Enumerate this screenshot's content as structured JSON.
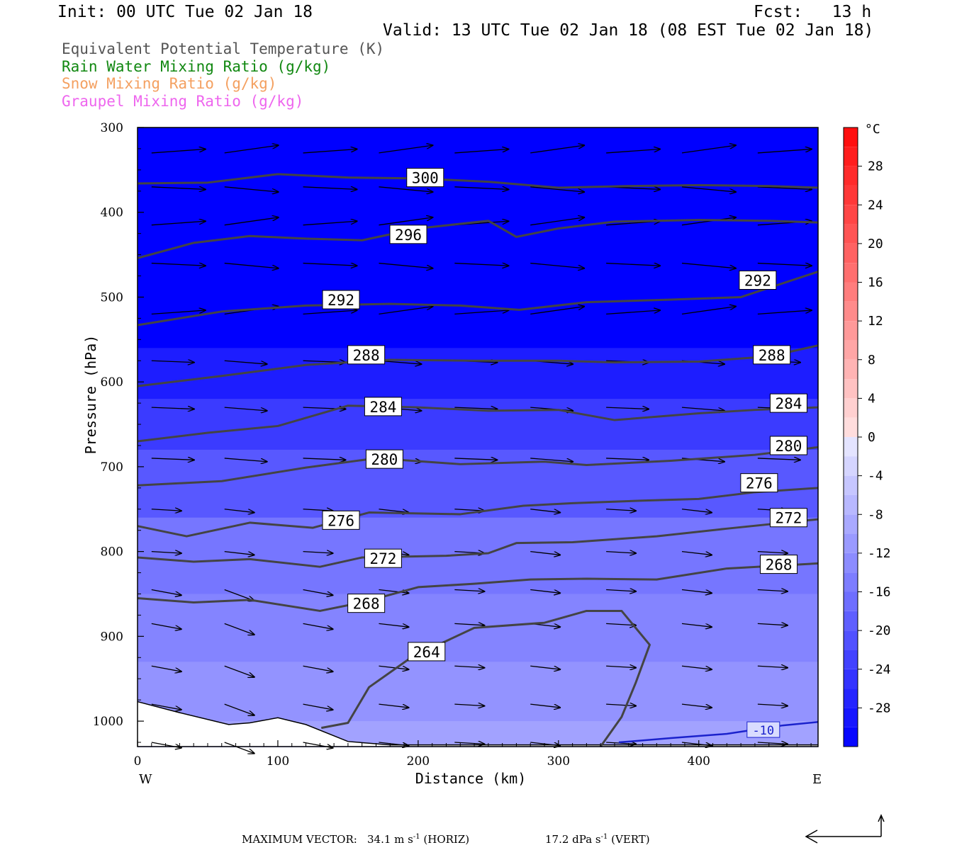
{
  "header": {
    "init": "Init: 00 UTC Tue 02 Jan 18",
    "fcst": "Fcst:   13 h",
    "valid": "Valid: 13 UTC Tue 02 Jan 18 (08 EST Tue 02 Jan 18)"
  },
  "legend": [
    {
      "text": "Equivalent Potential Temperature (K)",
      "color": "#555555"
    },
    {
      "text": "Rain Water Mixing Ratio (g/kg)",
      "color": "#118811"
    },
    {
      "text": "Snow Mixing Ratio (g/kg)",
      "color": "#f4a060"
    },
    {
      "text": "Graupel Mixing Ratio (g/kg)",
      "color": "#ee66ee"
    }
  ],
  "footer": {
    "label": "MAXIMUM VECTOR:",
    "horiz_value": "34.1 m s",
    "horiz_exp": "-1",
    "horiz_tag": "(HORIZ)",
    "vert_value": "17.2 dPa s",
    "vert_exp": "-1",
    "vert_tag": "(VERT)"
  },
  "chart_data": {
    "type": "cross-section",
    "xlabel": "Distance (km)",
    "ylabel": "Pressure (hPa)",
    "xlim": [
      0,
      485
    ],
    "ylim": [
      1030,
      300
    ],
    "x_ticks": [
      0,
      100,
      200,
      300,
      400
    ],
    "y_ticks": [
      300,
      400,
      500,
      600,
      700,
      800,
      900,
      1000
    ],
    "x_end_labels": {
      "left": "W",
      "right": "E"
    },
    "colorbar": {
      "unit": "°C",
      "range": [
        -32,
        32
      ],
      "labels": [
        28,
        24,
        20,
        16,
        12,
        8,
        4,
        0,
        -4,
        -8,
        -12,
        -16,
        -20,
        -24,
        -28
      ]
    },
    "temperature_fill_bands": [
      {
        "p": 300,
        "t": -32
      },
      {
        "p": 560,
        "t": -28
      },
      {
        "p": 620,
        "t": -24
      },
      {
        "p": 680,
        "t": -20
      },
      {
        "p": 760,
        "t": -16
      },
      {
        "p": 850,
        "t": -14
      },
      {
        "p": 930,
        "t": -12
      },
      {
        "p": 1000,
        "t": -10
      }
    ],
    "theta_e_contours": [
      {
        "label": "300",
        "label_at": [
          205,
          359
        ],
        "points": [
          [
            0,
            366
          ],
          [
            50,
            365
          ],
          [
            100,
            355
          ],
          [
            150,
            359
          ],
          [
            200,
            360
          ],
          [
            250,
            364
          ],
          [
            300,
            371
          ],
          [
            350,
            369
          ],
          [
            400,
            368
          ],
          [
            450,
            369
          ],
          [
            485,
            371
          ]
        ]
      },
      {
        "label": "296",
        "label_at": [
          193,
          426
        ],
        "points": [
          [
            0,
            454
          ],
          [
            40,
            436
          ],
          [
            80,
            428
          ],
          [
            120,
            431
          ],
          [
            160,
            433
          ],
          [
            200,
            419
          ],
          [
            250,
            410
          ],
          [
            270,
            429
          ],
          [
            300,
            419
          ],
          [
            340,
            411
          ],
          [
            400,
            409
          ],
          [
            450,
            410
          ],
          [
            485,
            412
          ]
        ]
      },
      {
        "label": "292",
        "label_at": [
          145,
          503
        ],
        "points": [
          [
            0,
            533
          ],
          [
            60,
            517
          ],
          [
            120,
            510
          ],
          [
            180,
            508
          ],
          [
            230,
            510
          ],
          [
            272,
            515
          ],
          [
            320,
            506
          ],
          [
            380,
            503
          ],
          [
            430,
            500
          ],
          [
            485,
            470
          ]
        ]
      },
      {
        "label": "292",
        "label_at": [
          442,
          480
        ],
        "points": []
      },
      {
        "label": "288",
        "label_at": [
          163,
          568
        ],
        "points": [
          [
            0,
            605
          ],
          [
            60,
            593
          ],
          [
            120,
            580
          ],
          [
            180,
            574
          ],
          [
            240,
            575
          ],
          [
            300,
            575
          ],
          [
            340,
            577
          ],
          [
            400,
            576
          ],
          [
            450,
            570
          ],
          [
            485,
            557
          ]
        ]
      },
      {
        "label": "288",
        "label_at": [
          452,
          568
        ],
        "points": []
      },
      {
        "label": "284",
        "label_at": [
          175,
          629
        ],
        "points": [
          [
            0,
            670
          ],
          [
            50,
            660
          ],
          [
            100,
            652
          ],
          [
            150,
            628
          ],
          [
            200,
            630
          ],
          [
            250,
            634
          ],
          [
            300,
            633
          ],
          [
            340,
            645
          ],
          [
            400,
            637
          ],
          [
            440,
            633
          ],
          [
            485,
            630
          ]
        ]
      },
      {
        "label": "284",
        "label_at": [
          464,
          625
        ],
        "points": []
      },
      {
        "label": "280",
        "label_at": [
          176,
          691
        ],
        "points": [
          [
            0,
            722
          ],
          [
            60,
            717
          ],
          [
            120,
            701
          ],
          [
            170,
            690
          ],
          [
            230,
            697
          ],
          [
            290,
            694
          ],
          [
            320,
            698
          ],
          [
            380,
            693
          ],
          [
            440,
            686
          ],
          [
            485,
            677
          ]
        ]
      },
      {
        "label": "280",
        "label_at": [
          464,
          675
        ],
        "points": []
      },
      {
        "label": "276",
        "label_at": [
          145,
          763
        ],
        "points": [
          [
            0,
            770
          ],
          [
            35,
            782
          ],
          [
            80,
            766
          ],
          [
            125,
            772
          ],
          [
            165,
            754
          ],
          [
            230,
            756
          ],
          [
            275,
            746
          ],
          [
            310,
            743
          ],
          [
            360,
            740
          ],
          [
            400,
            738
          ],
          [
            440,
            730
          ],
          [
            485,
            725
          ]
        ]
      },
      {
        "label": "276",
        "label_at": [
          443,
          719
        ],
        "points": []
      },
      {
        "label": "272",
        "label_at": [
          175,
          808
        ],
        "points": [
          [
            0,
            807
          ],
          [
            40,
            812
          ],
          [
            80,
            809
          ],
          [
            130,
            818
          ],
          [
            160,
            807
          ],
          [
            220,
            805
          ],
          [
            250,
            802
          ],
          [
            270,
            790
          ],
          [
            310,
            789
          ],
          [
            370,
            782
          ],
          [
            420,
            773
          ],
          [
            485,
            762
          ]
        ]
      },
      {
        "label": "272",
        "label_at": [
          464,
          760
        ],
        "points": []
      },
      {
        "label": "268",
        "label_at": [
          163,
          861
        ],
        "points": [
          [
            0,
            855
          ],
          [
            40,
            860
          ],
          [
            80,
            857
          ],
          [
            130,
            870
          ],
          [
            160,
            860
          ],
          [
            200,
            842
          ],
          [
            240,
            838
          ],
          [
            280,
            833
          ],
          [
            320,
            832
          ],
          [
            370,
            833
          ],
          [
            420,
            820
          ],
          [
            485,
            814
          ]
        ]
      },
      {
        "label": "268",
        "label_at": [
          457,
          815
        ],
        "points": []
      },
      {
        "label": "264",
        "label_at": [
          206,
          918
        ],
        "points": [
          [
            131,
            1008
          ],
          [
            150,
            1002
          ],
          [
            165,
            960
          ],
          [
            195,
            925
          ],
          [
            240,
            890
          ],
          [
            290,
            884
          ],
          [
            320,
            870
          ],
          [
            345,
            870
          ],
          [
            365,
            910
          ],
          [
            355,
            955
          ],
          [
            345,
            995
          ],
          [
            330,
            1030
          ]
        ]
      }
    ],
    "temperature_contour": {
      "label": "-10",
      "label_at": [
        446,
        1010
      ],
      "points": [
        [
          343,
          1025
        ],
        [
          380,
          1020
        ],
        [
          420,
          1015
        ],
        [
          460,
          1005
        ],
        [
          485,
          1001
        ]
      ]
    },
    "terrain_surface": [
      [
        0,
        977
      ],
      [
        30,
        990
      ],
      [
        65,
        1004
      ],
      [
        80,
        1002
      ],
      [
        100,
        996
      ],
      [
        120,
        1004
      ],
      [
        150,
        1024
      ],
      [
        180,
        1028
      ],
      [
        485,
        1028
      ]
    ],
    "wind_vectors": {
      "max_horiz": "34.1 m s-1",
      "max_vert": "17.2 dPa s-1"
    }
  }
}
